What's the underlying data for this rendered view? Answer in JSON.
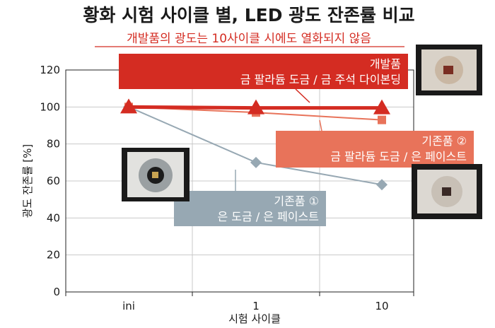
{
  "chart_data": {
    "type": "line",
    "title": "황화 시험 사이클 별, LED 광도 잔존률 비교",
    "subtitle": "개발품의 광도는 10사이클 시에도 열화되지 않음",
    "xlabel": "시험 사이클",
    "ylabel": "광도 잔존률 [%]",
    "categories": [
      "ini",
      "1",
      "10"
    ],
    "ylim": [
      0,
      120
    ],
    "yticks": [
      0,
      20,
      40,
      60,
      80,
      100,
      120
    ],
    "grid": true,
    "series": [
      {
        "name": "개발품",
        "callout": [
          "개발품",
          "금 팔라듐 도금 / 금 주석 다이본딩"
        ],
        "values": [
          100,
          99.5,
          99.5
        ],
        "color": "#d42c22",
        "marker": "triangle"
      },
      {
        "name": "기존품 ②",
        "callout": [
          "기존품 ②",
          "금 팔라듐 도금 / 은 페이스트"
        ],
        "values": [
          100,
          97,
          93
        ],
        "color": "#e8735a",
        "marker": "square"
      },
      {
        "name": "기존품 ①",
        "callout": [
          "기존품 ①",
          "은 도금 / 은 페이스트"
        ],
        "values": [
          100,
          70,
          58
        ],
        "color": "#97a8b3",
        "marker": "diamond"
      }
    ]
  },
  "photos": [
    {
      "name": "developed-led-photo"
    },
    {
      "name": "conventional-2-led-photo"
    },
    {
      "name": "conventional-1-led-photo"
    }
  ]
}
